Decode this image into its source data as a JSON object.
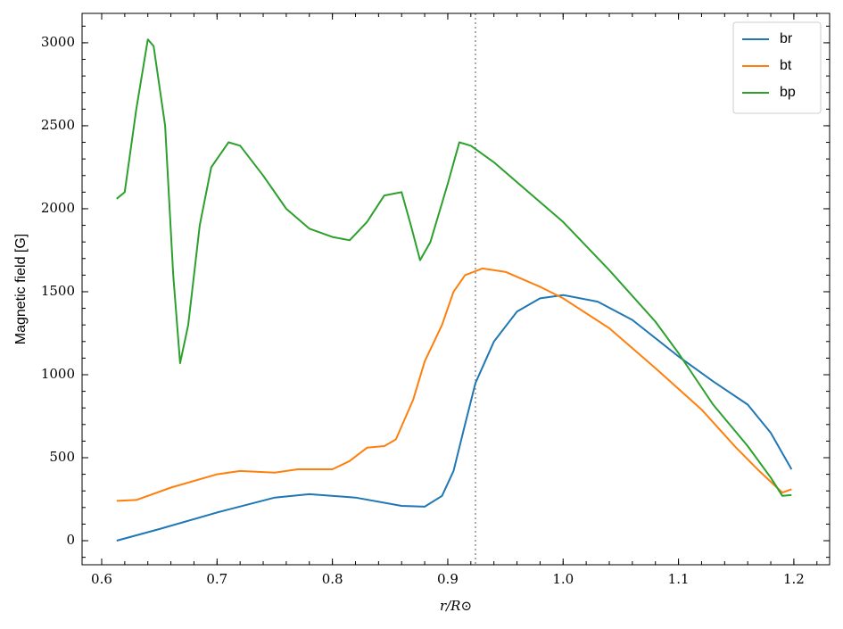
{
  "chart_data": {
    "type": "line",
    "xlabel": "r/R⊙",
    "ylabel": "Magnetic field [G]",
    "xlim": [
      0.583,
      1.231
    ],
    "ylim": [
      -145,
      3177
    ],
    "xticks": [
      {
        "value": 0.6,
        "label": "0.6"
      },
      0.7,
      0.8,
      0.9,
      {
        "value": 1.0,
        "label": "1.0"
      },
      1.1,
      1.2
    ],
    "yticks": [
      0,
      500,
      1000,
      1500,
      2000,
      2500,
      3000
    ],
    "vline": 0.924,
    "legend": "upper right",
    "series": [
      {
        "name": "br",
        "color": "#1f77b4",
        "x": [
          0.613,
          0.65,
          0.7,
          0.75,
          0.78,
          0.82,
          0.86,
          0.88,
          0.895,
          0.905,
          0.915,
          0.924,
          0.94,
          0.96,
          0.98,
          1.0,
          1.03,
          1.06,
          1.1,
          1.13,
          1.16,
          1.18,
          1.198
        ],
        "values": [
          0,
          70,
          170,
          260,
          280,
          260,
          210,
          205,
          270,
          420,
          700,
          950,
          1200,
          1380,
          1460,
          1480,
          1440,
          1330,
          1110,
          960,
          820,
          650,
          430
        ]
      },
      {
        "name": "bt",
        "color": "#ff7f0e",
        "x": [
          0.613,
          0.63,
          0.66,
          0.7,
          0.72,
          0.75,
          0.77,
          0.8,
          0.815,
          0.83,
          0.845,
          0.855,
          0.87,
          0.88,
          0.895,
          0.905,
          0.915,
          0.93,
          0.95,
          0.98,
          1.0,
          1.04,
          1.08,
          1.12,
          1.15,
          1.17,
          1.19,
          1.198
        ],
        "values": [
          240,
          245,
          320,
          400,
          420,
          410,
          430,
          430,
          480,
          560,
          570,
          610,
          850,
          1080,
          1300,
          1500,
          1600,
          1640,
          1620,
          1530,
          1460,
          1280,
          1040,
          790,
          560,
          420,
          290,
          310
        ]
      },
      {
        "name": "bp",
        "color": "#2ca02c",
        "x": [
          0.613,
          0.62,
          0.63,
          0.64,
          0.645,
          0.655,
          0.662,
          0.668,
          0.675,
          0.685,
          0.695,
          0.71,
          0.72,
          0.74,
          0.76,
          0.78,
          0.8,
          0.815,
          0.83,
          0.845,
          0.86,
          0.868,
          0.876,
          0.885,
          0.9,
          0.91,
          0.92,
          0.94,
          0.97,
          1.0,
          1.04,
          1.08,
          1.1,
          1.13,
          1.16,
          1.18,
          1.19,
          1.198
        ],
        "values": [
          2060,
          2100,
          2600,
          3020,
          2980,
          2500,
          1600,
          1070,
          1300,
          1900,
          2250,
          2400,
          2380,
          2200,
          2000,
          1880,
          1830,
          1810,
          1920,
          2080,
          2100,
          1900,
          1690,
          1800,
          2150,
          2400,
          2380,
          2280,
          2100,
          1920,
          1630,
          1320,
          1130,
          820,
          570,
          380,
          270,
          275
        ]
      }
    ]
  }
}
